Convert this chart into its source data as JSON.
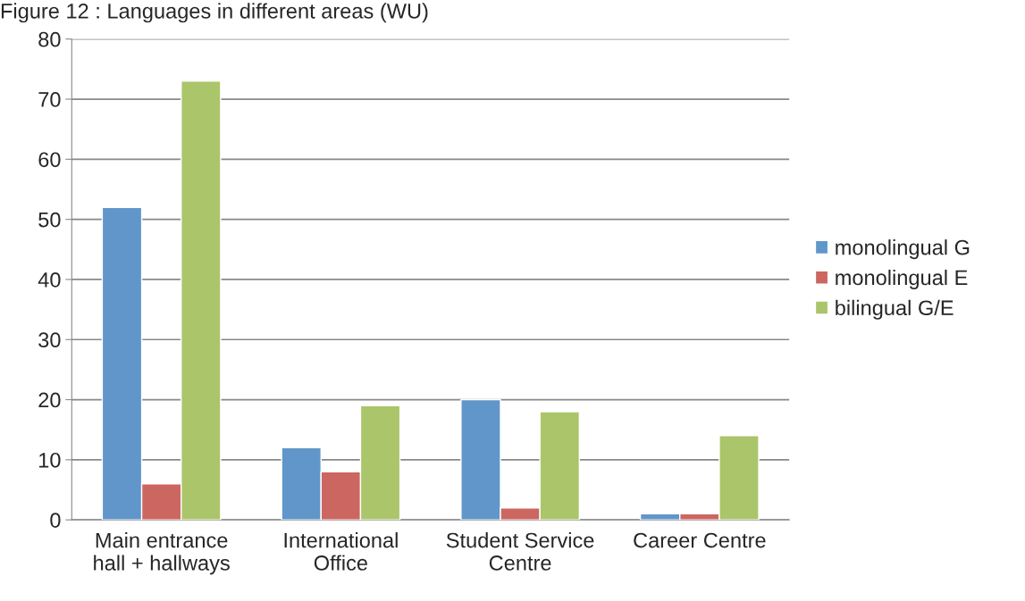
{
  "chart_data": {
    "type": "bar",
    "title": "Figure 12 : Languages in different areas (WU)",
    "categories": [
      "Main entrance\nhall + hallways",
      "International\nOffice",
      "Student Service\nCentre",
      "Career Centre"
    ],
    "series": [
      {
        "name": "monolingual G",
        "color": "#6096c9",
        "values": [
          52,
          12,
          20,
          1
        ]
      },
      {
        "name": "monolingual E",
        "color": "#cc6660",
        "values": [
          6,
          8,
          2,
          1
        ]
      },
      {
        "name": "bilingual G/E",
        "color": "#abc56a",
        "values": [
          73,
          19,
          18,
          14
        ]
      }
    ],
    "ylim": [
      0,
      80
    ],
    "yticks": [
      0,
      10,
      20,
      30,
      40,
      50,
      60,
      70,
      80
    ],
    "grid": "y",
    "legend": "right"
  }
}
